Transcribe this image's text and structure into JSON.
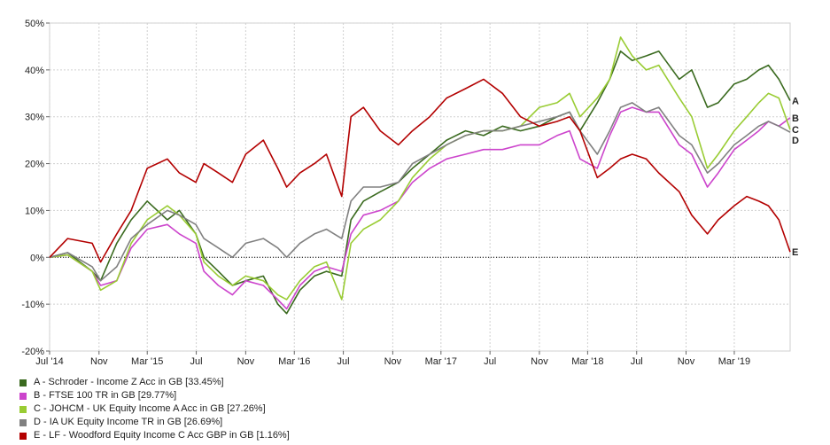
{
  "chart_data": {
    "type": "line",
    "title": "",
    "xlabel": "",
    "ylabel": "",
    "ylim": [
      -20,
      50
    ],
    "xlim": [
      "2014-07-01",
      "2019-07-18"
    ],
    "yticks": [
      50,
      40,
      30,
      20,
      10,
      0,
      -10,
      -20
    ],
    "ytick_labels": [
      "50%",
      "40%",
      "30%",
      "20%",
      "10%",
      "0%",
      "-10%",
      "-20%"
    ],
    "xticks": [
      {
        "date": "2014-07-01",
        "label": "Jul '14"
      },
      {
        "date": "2014-11-01",
        "label": "Nov"
      },
      {
        "date": "2015-03-01",
        "label": "Mar '15"
      },
      {
        "date": "2015-07-01",
        "label": "Jul"
      },
      {
        "date": "2015-11-01",
        "label": "Nov"
      },
      {
        "date": "2016-03-01",
        "label": "Mar '16"
      },
      {
        "date": "2016-07-01",
        "label": "Jul"
      },
      {
        "date": "2016-11-01",
        "label": "Nov"
      },
      {
        "date": "2017-03-01",
        "label": "Mar '17"
      },
      {
        "date": "2017-07-01",
        "label": "Jul"
      },
      {
        "date": "2017-11-01",
        "label": "Nov"
      },
      {
        "date": "2018-03-01",
        "label": "Mar '18"
      },
      {
        "date": "2018-07-01",
        "label": "Jul"
      },
      {
        "date": "2018-11-01",
        "label": "Nov"
      },
      {
        "date": "2019-03-01",
        "label": "Mar '19"
      }
    ],
    "grid": true,
    "legend_position": "bottom-left",
    "series": [
      {
        "id": "A",
        "name": "A - Schroder - Income Z Acc in GB [33.45%]",
        "color": "#3a6a1f",
        "dates": [
          "2014-07-01",
          "2014-08-15",
          "2014-10-15",
          "2014-11-05",
          "2014-12-15",
          "2015-01-20",
          "2015-03-01",
          "2015-04-20",
          "2015-05-20",
          "2015-06-30",
          "2015-07-20",
          "2015-08-25",
          "2015-09-29",
          "2015-11-01",
          "2015-12-15",
          "2016-01-20",
          "2016-02-11",
          "2016-03-15",
          "2016-04-20",
          "2016-05-20",
          "2016-06-27",
          "2016-07-20",
          "2016-08-20",
          "2016-10-01",
          "2016-11-15",
          "2016-12-20",
          "2017-02-01",
          "2017-03-15",
          "2017-05-01",
          "2017-06-15",
          "2017-08-01",
          "2017-09-15",
          "2017-11-01",
          "2017-12-15",
          "2018-01-15",
          "2018-02-10",
          "2018-03-25",
          "2018-04-25",
          "2018-05-22",
          "2018-06-20",
          "2018-07-25",
          "2018-08-25",
          "2018-10-15",
          "2018-11-15",
          "2018-12-24",
          "2019-01-20",
          "2019-03-01",
          "2019-04-01",
          "2019-05-01",
          "2019-05-25",
          "2019-06-20",
          "2019-07-18"
        ],
        "values": [
          0,
          1,
          -3,
          -5,
          3,
          8,
          12,
          8,
          10,
          5,
          0,
          -3,
          -6,
          -5,
          -4,
          -10,
          -12,
          -7,
          -4,
          -3,
          -4,
          8,
          12,
          14,
          16,
          19,
          22,
          25,
          27,
          26,
          28,
          27,
          28,
          30,
          31,
          27,
          33,
          38,
          44,
          42,
          43,
          44,
          38,
          40,
          32,
          33,
          37,
          38,
          40,
          41,
          38,
          33.45
        ]
      },
      {
        "id": "B",
        "name": "B - FTSE 100 TR in GB [29.77%]",
        "color": "#cc44cc",
        "dates": [
          "2014-07-01",
          "2014-08-15",
          "2014-10-15",
          "2014-11-05",
          "2014-12-15",
          "2015-01-20",
          "2015-03-01",
          "2015-04-20",
          "2015-05-20",
          "2015-06-30",
          "2015-07-20",
          "2015-08-25",
          "2015-09-29",
          "2015-11-01",
          "2015-12-15",
          "2016-01-20",
          "2016-02-11",
          "2016-03-15",
          "2016-04-20",
          "2016-05-20",
          "2016-06-27",
          "2016-07-20",
          "2016-08-20",
          "2016-10-01",
          "2016-11-15",
          "2016-12-20",
          "2017-02-01",
          "2017-03-15",
          "2017-05-01",
          "2017-06-15",
          "2017-08-01",
          "2017-09-15",
          "2017-11-01",
          "2017-12-15",
          "2018-01-15",
          "2018-02-10",
          "2018-03-25",
          "2018-04-25",
          "2018-05-22",
          "2018-06-20",
          "2018-07-25",
          "2018-08-25",
          "2018-10-15",
          "2018-11-15",
          "2018-12-24",
          "2019-01-20",
          "2019-03-01",
          "2019-04-01",
          "2019-05-01",
          "2019-05-25",
          "2019-06-20",
          "2019-07-18"
        ],
        "values": [
          0,
          0.5,
          -3,
          -6,
          -5,
          2,
          6,
          7,
          5,
          3,
          -3,
          -6,
          -8,
          -5,
          -6,
          -9,
          -11,
          -6,
          -3,
          -2,
          -3,
          5,
          9,
          10,
          12,
          16,
          19,
          21,
          22,
          23,
          23,
          24,
          24,
          26,
          27,
          21,
          19,
          26,
          31,
          32,
          31,
          31,
          24,
          22,
          15,
          18,
          23,
          25,
          27,
          29,
          28,
          29.77
        ]
      },
      {
        "id": "C",
        "name": "C - JOHCM - UK Equity Income A Acc in GB [27.26%]",
        "color": "#99cc33",
        "dates": [
          "2014-07-01",
          "2014-08-15",
          "2014-10-15",
          "2014-11-05",
          "2014-12-15",
          "2015-01-20",
          "2015-03-01",
          "2015-04-20",
          "2015-05-20",
          "2015-06-30",
          "2015-07-20",
          "2015-08-25",
          "2015-09-29",
          "2015-11-01",
          "2015-12-15",
          "2016-01-20",
          "2016-02-11",
          "2016-03-15",
          "2016-04-20",
          "2016-05-20",
          "2016-06-27",
          "2016-07-20",
          "2016-08-20",
          "2016-10-01",
          "2016-11-15",
          "2016-12-20",
          "2017-02-01",
          "2017-03-15",
          "2017-05-01",
          "2017-06-15",
          "2017-08-01",
          "2017-09-15",
          "2017-11-01",
          "2017-12-15",
          "2018-01-15",
          "2018-02-10",
          "2018-03-25",
          "2018-04-25",
          "2018-05-22",
          "2018-06-20",
          "2018-07-25",
          "2018-08-25",
          "2018-10-15",
          "2018-11-15",
          "2018-12-24",
          "2019-01-20",
          "2019-03-01",
          "2019-04-01",
          "2019-05-01",
          "2019-05-25",
          "2019-06-20",
          "2019-07-18"
        ],
        "values": [
          0,
          0.5,
          -3,
          -7,
          -5,
          3,
          8,
          11,
          9,
          5,
          -1,
          -4,
          -6,
          -4,
          -5,
          -8,
          -9,
          -5,
          -2,
          -1,
          -9,
          3,
          6,
          8,
          12,
          17,
          21,
          24,
          26,
          27,
          27,
          28,
          32,
          33,
          35,
          30,
          34,
          38,
          47,
          43,
          40,
          41,
          34,
          30,
          19,
          22,
          27,
          30,
          33,
          35,
          34,
          27.26
        ]
      },
      {
        "id": "D",
        "name": "D - IA UK Equity Income TR in GB [26.69%]",
        "color": "#808080",
        "dates": [
          "2014-07-01",
          "2014-08-15",
          "2014-10-15",
          "2014-11-05",
          "2014-12-15",
          "2015-01-20",
          "2015-03-01",
          "2015-04-20",
          "2015-05-20",
          "2015-06-30",
          "2015-07-20",
          "2015-08-25",
          "2015-09-29",
          "2015-11-01",
          "2015-12-15",
          "2016-01-20",
          "2016-02-11",
          "2016-03-15",
          "2016-04-20",
          "2016-05-20",
          "2016-06-27",
          "2016-07-20",
          "2016-08-20",
          "2016-10-01",
          "2016-11-15",
          "2016-12-20",
          "2017-02-01",
          "2017-03-15",
          "2017-05-01",
          "2017-06-15",
          "2017-08-01",
          "2017-09-15",
          "2017-11-01",
          "2017-12-15",
          "2018-01-15",
          "2018-02-10",
          "2018-03-25",
          "2018-04-25",
          "2018-05-22",
          "2018-06-20",
          "2018-07-25",
          "2018-08-25",
          "2018-10-15",
          "2018-11-15",
          "2018-12-24",
          "2019-01-20",
          "2019-03-01",
          "2019-04-01",
          "2019-05-01",
          "2019-05-25",
          "2019-06-20",
          "2019-07-18"
        ],
        "values": [
          0,
          1,
          -2,
          -5,
          -2,
          4,
          7,
          10,
          9,
          7,
          4,
          2,
          0,
          3,
          4,
          2,
          0,
          3,
          5,
          6,
          4,
          12,
          15,
          15,
          16,
          20,
          22,
          24,
          26,
          27,
          27,
          28,
          29,
          30,
          31,
          27,
          22,
          27,
          32,
          33,
          31,
          32,
          26,
          24,
          18,
          20,
          24,
          26,
          28,
          29,
          28,
          26.69
        ]
      },
      {
        "id": "E",
        "name": "E - LF - Woodford Equity Income C Acc GBP in GB [1.16%]",
        "color": "#b30000",
        "dates": [
          "2014-07-01",
          "2014-08-15",
          "2014-10-15",
          "2014-11-05",
          "2014-12-15",
          "2015-01-20",
          "2015-03-01",
          "2015-04-20",
          "2015-05-20",
          "2015-06-30",
          "2015-07-20",
          "2015-08-25",
          "2015-09-29",
          "2015-11-01",
          "2015-12-15",
          "2016-01-20",
          "2016-02-11",
          "2016-03-15",
          "2016-04-20",
          "2016-05-20",
          "2016-06-27",
          "2016-07-20",
          "2016-08-20",
          "2016-10-01",
          "2016-11-15",
          "2016-12-20",
          "2017-02-01",
          "2017-03-15",
          "2017-05-01",
          "2017-06-15",
          "2017-08-01",
          "2017-09-15",
          "2017-11-01",
          "2017-12-15",
          "2018-01-15",
          "2018-02-10",
          "2018-03-25",
          "2018-04-25",
          "2018-05-22",
          "2018-06-20",
          "2018-07-25",
          "2018-08-25",
          "2018-10-15",
          "2018-11-15",
          "2018-12-24",
          "2019-01-20",
          "2019-03-01",
          "2019-04-01",
          "2019-05-01",
          "2019-05-25",
          "2019-06-20",
          "2019-07-18"
        ],
        "values": [
          0,
          4,
          3,
          -1,
          5,
          10,
          19,
          21,
          18,
          16,
          20,
          18,
          16,
          22,
          25,
          19,
          15,
          18,
          20,
          22,
          13,
          30,
          32,
          27,
          24,
          27,
          30,
          34,
          36,
          38,
          35,
          30,
          28,
          29,
          30,
          27,
          17,
          19,
          21,
          22,
          21,
          18,
          14,
          9,
          5,
          8,
          11,
          13,
          12,
          11,
          8,
          1.16
        ]
      }
    ]
  }
}
